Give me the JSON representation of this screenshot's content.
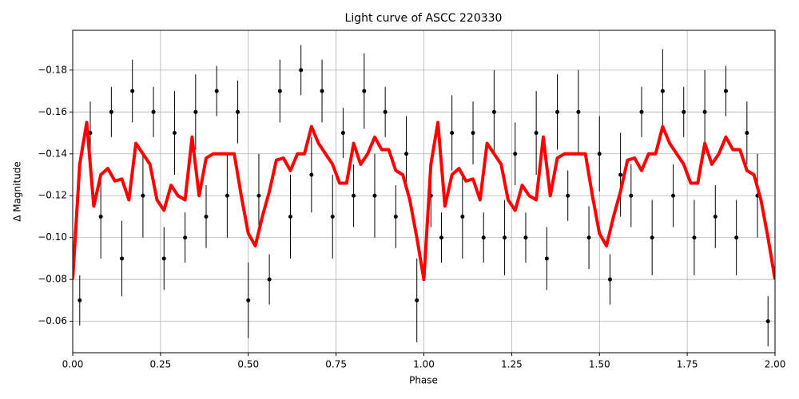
{
  "chart_data": {
    "type": "scatter",
    "title": "Light curve of ASCC 220330",
    "xlabel": "Phase",
    "ylabel": "Δ Magnitude",
    "xlim": [
      0,
      2
    ],
    "ylim": [
      -0.045,
      -0.199
    ],
    "xticks": [
      {
        "value": 0,
        "label": "0.00"
      },
      {
        "value": 0.25,
        "label": "0.25"
      },
      {
        "value": 0.5,
        "label": "0.50"
      },
      {
        "value": 0.75,
        "label": "0.75"
      },
      {
        "value": 1,
        "label": "1.00"
      },
      {
        "value": 1.25,
        "label": "1.25"
      },
      {
        "value": 1.5,
        "label": "1.50"
      },
      {
        "value": 1.75,
        "label": "1.75"
      },
      {
        "value": 2,
        "label": "2.00"
      }
    ],
    "yticks": [
      {
        "value": -0.06,
        "label": "−0.06"
      },
      {
        "value": -0.08,
        "label": "−0.08"
      },
      {
        "value": -0.1,
        "label": "−0.10"
      },
      {
        "value": -0.12,
        "label": "−0.12"
      },
      {
        "value": -0.14,
        "label": "−0.14"
      },
      {
        "value": -0.16,
        "label": "−0.16"
      },
      {
        "value": -0.18,
        "label": "−0.18"
      }
    ],
    "grid": true,
    "points": {
      "color": "#000000",
      "x": [
        0.02,
        0.05,
        0.08,
        0.11,
        0.14,
        0.17,
        0.2,
        0.23,
        0.26,
        0.29,
        0.32,
        0.35,
        0.38,
        0.41,
        0.44,
        0.47,
        0.5,
        0.53,
        0.56,
        0.59,
        0.62,
        0.65,
        0.68,
        0.71,
        0.74,
        0.77,
        0.8,
        0.83,
        0.86,
        0.89,
        0.92,
        0.95,
        0.98,
        1.02,
        1.05,
        1.08,
        1.11,
        1.14,
        1.17,
        1.2,
        1.23,
        1.26,
        1.29,
        1.32,
        1.35,
        1.38,
        1.41,
        1.44,
        1.47,
        1.5,
        1.53,
        1.56,
        1.59,
        1.62,
        1.65,
        1.68,
        1.71,
        1.74,
        1.77,
        1.8,
        1.83,
        1.86,
        1.89,
        1.92,
        1.95,
        1.98
      ],
      "values": [
        -0.07,
        -0.15,
        -0.11,
        -0.16,
        -0.09,
        -0.17,
        -0.12,
        -0.16,
        -0.09,
        -0.15,
        -0.1,
        -0.16,
        -0.11,
        -0.17,
        -0.12,
        -0.16,
        -0.07,
        -0.12,
        -0.08,
        -0.17,
        -0.11,
        -0.18,
        -0.13,
        -0.17,
        -0.11,
        -0.15,
        -0.12,
        -0.17,
        -0.12,
        -0.16,
        -0.11,
        -0.14,
        -0.07,
        -0.12,
        -0.1,
        -0.15,
        -0.11,
        -0.15,
        -0.1,
        -0.16,
        -0.1,
        -0.14,
        -0.1,
        -0.15,
        -0.09,
        -0.16,
        -0.12,
        -0.16,
        -0.1,
        -0.14,
        -0.08,
        -0.13,
        -0.12,
        -0.16,
        -0.1,
        -0.17,
        -0.12,
        -0.16,
        -0.1,
        -0.16,
        -0.11,
        -0.17,
        -0.1,
        -0.15,
        -0.12,
        -0.06
      ],
      "errors": [
        0.012,
        0.015,
        0.02,
        0.012,
        0.018,
        0.015,
        0.02,
        0.012,
        0.015,
        0.02,
        0.012,
        0.018,
        0.015,
        0.012,
        0.02,
        0.015,
        0.018,
        0.02,
        0.012,
        0.015,
        0.02,
        0.012,
        0.018,
        0.015,
        0.02,
        0.012,
        0.015,
        0.018,
        0.02,
        0.012,
        0.015,
        0.018,
        0.02,
        0.015,
        0.012,
        0.018,
        0.02,
        0.015,
        0.012,
        0.02,
        0.018,
        0.015,
        0.012,
        0.02,
        0.015,
        0.018,
        0.012,
        0.02,
        0.015,
        0.018,
        0.012,
        0.02,
        0.015,
        0.012,
        0.018,
        0.02,
        0.015,
        0.012,
        0.018,
        0.02,
        0.015,
        0.012,
        0.018,
        0.015,
        0.02,
        0.012
      ]
    },
    "curve": {
      "color": "#ff0000",
      "x": [
        0,
        0.02,
        0.04,
        0.06,
        0.08,
        0.1,
        0.12,
        0.14,
        0.16,
        0.18,
        0.2,
        0.22,
        0.24,
        0.26,
        0.28,
        0.3,
        0.32,
        0.34,
        0.36,
        0.38,
        0.4,
        0.42,
        0.44,
        0.46,
        0.48,
        0.5,
        0.52,
        0.54,
        0.56,
        0.58,
        0.6,
        0.62,
        0.64,
        0.66,
        0.68,
        0.7,
        0.72,
        0.74,
        0.76,
        0.78,
        0.8,
        0.82,
        0.84,
        0.86,
        0.88,
        0.9,
        0.92,
        0.94,
        0.96,
        0.98,
        1,
        1.02,
        1.04,
        1.06,
        1.08,
        1.1,
        1.12,
        1.14,
        1.16,
        1.18,
        1.2,
        1.22,
        1.24,
        1.26,
        1.28,
        1.3,
        1.32,
        1.34,
        1.36,
        1.38,
        1.4,
        1.42,
        1.44,
        1.46,
        1.48,
        1.5,
        1.52,
        1.54,
        1.56,
        1.58,
        1.6,
        1.62,
        1.64,
        1.66,
        1.68,
        1.7,
        1.72,
        1.74,
        1.76,
        1.78,
        1.8,
        1.82,
        1.84,
        1.86,
        1.88,
        1.9,
        1.92,
        1.94,
        1.96,
        1.98,
        2
      ],
      "values": [
        -0.08,
        -0.135,
        -0.155,
        -0.115,
        -0.13,
        -0.133,
        -0.127,
        -0.128,
        -0.118,
        -0.145,
        -0.14,
        -0.135,
        -0.118,
        -0.113,
        -0.125,
        -0.12,
        -0.118,
        -0.148,
        -0.12,
        -0.138,
        -0.14,
        -0.14,
        -0.14,
        -0.14,
        -0.12,
        -0.102,
        -0.096,
        -0.11,
        -0.122,
        -0.137,
        -0.138,
        -0.132,
        -0.14,
        -0.14,
        -0.153,
        -0.145,
        -0.14,
        -0.135,
        -0.126,
        -0.126,
        -0.145,
        -0.135,
        -0.14,
        -0.148,
        -0.142,
        -0.142,
        -0.132,
        -0.13,
        -0.118,
        -0.1,
        -0.08,
        -0.135,
        -0.155,
        -0.115,
        -0.13,
        -0.133,
        -0.127,
        -0.128,
        -0.118,
        -0.145,
        -0.14,
        -0.135,
        -0.118,
        -0.113,
        -0.125,
        -0.12,
        -0.118,
        -0.148,
        -0.12,
        -0.138,
        -0.14,
        -0.14,
        -0.14,
        -0.14,
        -0.12,
        -0.102,
        -0.096,
        -0.11,
        -0.122,
        -0.137,
        -0.138,
        -0.132,
        -0.14,
        -0.14,
        -0.153,
        -0.145,
        -0.14,
        -0.135,
        -0.126,
        -0.126,
        -0.145,
        -0.135,
        -0.14,
        -0.148,
        -0.142,
        -0.142,
        -0.132,
        -0.13,
        -0.118,
        -0.1,
        -0.08
      ]
    }
  }
}
